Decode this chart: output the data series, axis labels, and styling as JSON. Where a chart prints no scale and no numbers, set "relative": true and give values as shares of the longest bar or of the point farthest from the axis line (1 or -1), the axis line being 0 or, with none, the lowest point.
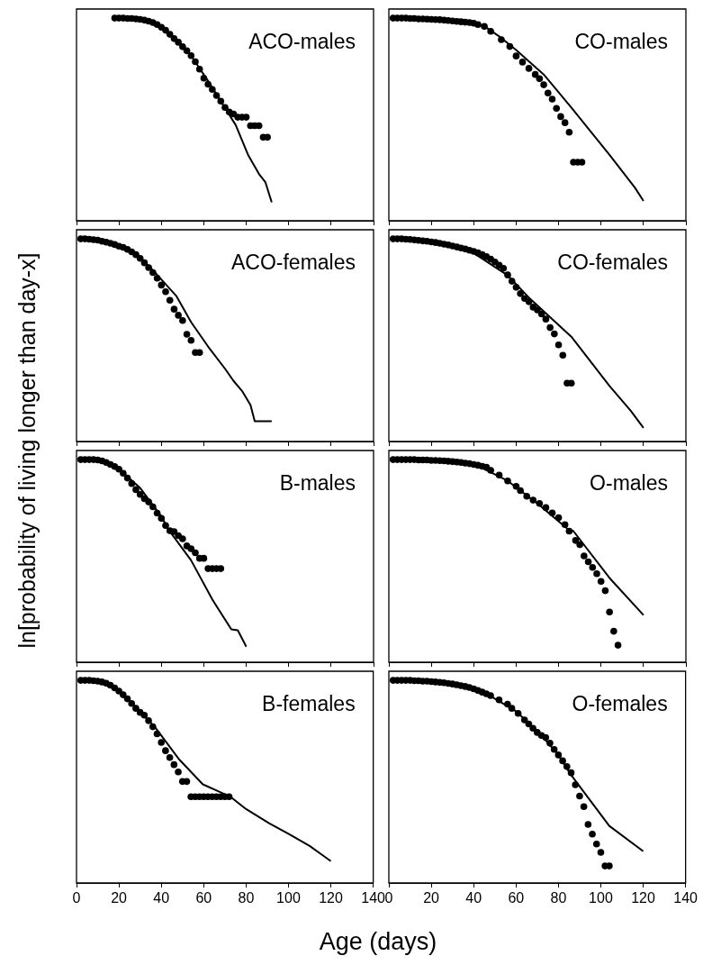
{
  "chart_data": [
    {
      "type": "scatter",
      "title": "ACO-males",
      "ylabel": "ln[probability of living longer than day-x]",
      "relative": true,
      "xlim": [
        0,
        140
      ],
      "xticks": [
        0,
        20,
        40,
        60,
        80,
        100,
        120,
        140
      ],
      "tick_labels": false,
      "series": [
        {
          "type": "scatter",
          "color": "#000000",
          "marker": "circle",
          "x": [
            18,
            20,
            22,
            24,
            26,
            28,
            30,
            32,
            34,
            36,
            38,
            40,
            42,
            44,
            46,
            48,
            50,
            52,
            54,
            56,
            58,
            60,
            62,
            64,
            66,
            68,
            70,
            72,
            74,
            76,
            78,
            80,
            82,
            84,
            86,
            88,
            90
          ],
          "values": [
            1,
            1,
            1,
            0.998,
            0.998,
            0.996,
            0.994,
            0.99,
            0.985,
            0.978,
            0.968,
            0.955,
            0.94,
            0.92,
            0.899,
            0.881,
            0.859,
            0.839,
            0.815,
            0.785,
            0.748,
            0.704,
            0.674,
            0.648,
            0.618,
            0.59,
            0.559,
            0.537,
            0.527,
            0.511,
            0.511,
            0.511,
            0.469,
            0.469,
            0.469,
            0.412,
            0.412
          ]
        },
        {
          "type": "line",
          "color": "#000000",
          "marker": "none",
          "line_style": "solid",
          "x": [
            18,
            30,
            40,
            46,
            54,
            62,
            69,
            75,
            81,
            86,
            89,
            92
          ],
          "values": [
            1,
            0.99,
            0.955,
            0.9,
            0.815,
            0.69,
            0.573,
            0.473,
            0.322,
            0.231,
            0.191,
            0.091
          ]
        }
      ]
    },
    {
      "type": "scatter",
      "title": "CO-males",
      "relative": true,
      "xlim": [
        0,
        140
      ],
      "xticks": [
        0,
        20,
        40,
        60,
        80,
        100,
        120,
        140
      ],
      "tick_labels": false,
      "series": [
        {
          "type": "scatter",
          "color": "#000000",
          "marker": "circle",
          "x": [
            2,
            4,
            6,
            8,
            10,
            12,
            14,
            16,
            18,
            20,
            22,
            24,
            26,
            28,
            30,
            32,
            34,
            36,
            38,
            40,
            42,
            45,
            48,
            53,
            57,
            60,
            63,
            66,
            69,
            71,
            73,
            75,
            77,
            79,
            81,
            83,
            85,
            87,
            89,
            91
          ],
          "values": [
            1,
            1,
            1,
            1,
            0.998,
            0.998,
            0.996,
            0.996,
            0.995,
            0.994,
            0.993,
            0.992,
            0.99,
            0.988,
            0.986,
            0.984,
            0.982,
            0.98,
            0.978,
            0.975,
            0.968,
            0.959,
            0.935,
            0.894,
            0.86,
            0.813,
            0.783,
            0.752,
            0.722,
            0.701,
            0.671,
            0.63,
            0.6,
            0.555,
            0.514,
            0.484,
            0.437,
            0.289,
            0.289,
            0.289
          ]
        },
        {
          "type": "line",
          "color": "#000000",
          "marker": "none",
          "line_style": "solid",
          "x": [
            2,
            15,
            30,
            45,
            52,
            60,
            73,
            86,
            104,
            116,
            120
          ],
          "values": [
            1,
            0.996,
            0.99,
            0.96,
            0.91,
            0.843,
            0.722,
            0.559,
            0.325,
            0.163,
            0.098
          ]
        }
      ]
    },
    {
      "type": "scatter",
      "title": "ACO-females",
      "relative": true,
      "xlim": [
        0,
        140
      ],
      "xticks": [
        0,
        20,
        40,
        60,
        80,
        100,
        120,
        140
      ],
      "tick_labels": false,
      "series": [
        {
          "type": "scatter",
          "color": "#000000",
          "marker": "circle",
          "x": [
            2,
            4,
            6,
            8,
            10,
            12,
            14,
            16,
            18,
            20,
            22,
            24,
            26,
            28,
            30,
            32,
            34,
            36,
            38,
            40,
            42,
            44,
            46,
            48,
            50,
            52,
            54,
            56,
            58
          ],
          "values": [
            1,
            1,
            0.998,
            0.996,
            0.994,
            0.988,
            0.984,
            0.978,
            0.972,
            0.964,
            0.958,
            0.948,
            0.936,
            0.922,
            0.904,
            0.882,
            0.858,
            0.834,
            0.806,
            0.772,
            0.739,
            0.697,
            0.653,
            0.623,
            0.597,
            0.529,
            0.499,
            0.439,
            0.439
          ]
        },
        {
          "type": "line",
          "color": "#000000",
          "marker": "none",
          "line_style": "solid",
          "x": [
            2,
            10,
            20,
            30,
            37,
            47,
            54,
            62,
            70,
            74,
            78,
            82,
            84,
            92
          ],
          "values": [
            1,
            0.994,
            0.965,
            0.91,
            0.834,
            0.719,
            0.589,
            0.469,
            0.359,
            0.299,
            0.25,
            0.18,
            0.1,
            0.1
          ]
        }
      ]
    },
    {
      "type": "scatter",
      "title": "CO-females",
      "relative": true,
      "xlim": [
        0,
        140
      ],
      "xticks": [
        0,
        20,
        40,
        60,
        80,
        100,
        120,
        140
      ],
      "tick_labels": false,
      "series": [
        {
          "type": "scatter",
          "color": "#000000",
          "marker": "circle",
          "x": [
            2,
            4,
            6,
            8,
            10,
            12,
            14,
            16,
            18,
            20,
            22,
            24,
            26,
            28,
            30,
            32,
            34,
            36,
            38,
            40,
            42,
            44,
            46,
            48,
            50,
            52,
            54,
            56,
            58,
            60,
            62,
            64,
            66,
            68,
            70,
            72,
            74,
            76,
            78,
            80,
            82,
            84,
            86
          ],
          "values": [
            1,
            1,
            1,
            0.998,
            0.997,
            0.995,
            0.993,
            0.99,
            0.988,
            0.985,
            0.982,
            0.978,
            0.974,
            0.97,
            0.965,
            0.96,
            0.955,
            0.95,
            0.944,
            0.938,
            0.931,
            0.922,
            0.912,
            0.9,
            0.886,
            0.87,
            0.855,
            0.822,
            0.791,
            0.761,
            0.73,
            0.706,
            0.69,
            0.663,
            0.649,
            0.629,
            0.604,
            0.562,
            0.531,
            0.477,
            0.426,
            0.288,
            0.288
          ]
        },
        {
          "type": "line",
          "color": "#000000",
          "marker": "none",
          "line_style": "solid",
          "x": [
            2,
            20,
            30,
            40,
            56,
            67,
            86,
            104,
            114,
            120
          ],
          "values": [
            1,
            0.985,
            0.965,
            0.93,
            0.82,
            0.7,
            0.517,
            0.274,
            0.152,
            0.067
          ]
        }
      ]
    },
    {
      "type": "scatter",
      "title": "B-males",
      "relative": true,
      "xlim": [
        0,
        140
      ],
      "xticks": [
        0,
        20,
        40,
        60,
        80,
        100,
        120,
        140
      ],
      "tick_labels": false,
      "series": [
        {
          "type": "scatter",
          "color": "#000000",
          "marker": "circle",
          "x": [
            2,
            4,
            6,
            8,
            10,
            12,
            14,
            16,
            18,
            20,
            22,
            24,
            26,
            28,
            30,
            32,
            34,
            36,
            38,
            40,
            42,
            44,
            46,
            48,
            50,
            52,
            54,
            56,
            58,
            60,
            62,
            64,
            66,
            68
          ],
          "values": [
            1,
            1,
            1,
            1,
            0.998,
            0.994,
            0.986,
            0.976,
            0.966,
            0.953,
            0.933,
            0.909,
            0.882,
            0.852,
            0.828,
            0.807,
            0.791,
            0.767,
            0.736,
            0.71,
            0.675,
            0.649,
            0.645,
            0.625,
            0.609,
            0.574,
            0.56,
            0.54,
            0.513,
            0.513,
            0.462,
            0.462,
            0.462,
            0.462
          ]
        },
        {
          "type": "line",
          "color": "#000000",
          "marker": "none",
          "line_style": "solid",
          "x": [
            2,
            10,
            20,
            30,
            40,
            43,
            54,
            64,
            67,
            73,
            76,
            78,
            80
          ],
          "values": [
            1,
            0.998,
            0.953,
            0.86,
            0.72,
            0.66,
            0.503,
            0.31,
            0.26,
            0.162,
            0.158,
            0.118,
            0.077
          ]
        }
      ]
    },
    {
      "type": "scatter",
      "title": "O-males",
      "relative": true,
      "xlim": [
        0,
        140
      ],
      "xticks": [
        0,
        20,
        40,
        60,
        80,
        100,
        120,
        140
      ],
      "tick_labels": false,
      "series": [
        {
          "type": "scatter",
          "color": "#000000",
          "marker": "circle",
          "x": [
            2,
            4,
            6,
            8,
            10,
            12,
            14,
            16,
            18,
            20,
            22,
            24,
            26,
            28,
            30,
            32,
            34,
            36,
            38,
            40,
            42,
            44,
            46,
            48,
            52,
            56,
            60,
            62,
            65,
            68,
            71,
            74,
            77,
            80,
            83,
            85,
            88,
            90,
            92,
            94,
            96,
            98,
            100,
            102,
            104,
            106,
            108
          ],
          "values": [
            1,
            1,
            1,
            1,
            1,
            1,
            0.998,
            0.998,
            0.998,
            0.996,
            0.996,
            0.995,
            0.994,
            0.992,
            0.99,
            0.988,
            0.986,
            0.983,
            0.98,
            0.976,
            0.972,
            0.967,
            0.962,
            0.947,
            0.924,
            0.895,
            0.868,
            0.847,
            0.819,
            0.8,
            0.784,
            0.763,
            0.737,
            0.714,
            0.679,
            0.647,
            0.601,
            0.58,
            0.525,
            0.496,
            0.468,
            0.437,
            0.399,
            0.353,
            0.248,
            0.153,
            0.084
          ]
        },
        {
          "type": "line",
          "color": "#000000",
          "marker": "none",
          "line_style": "solid",
          "x": [
            2,
            20,
            30,
            40,
            56,
            70,
            84,
            87,
            104,
            120
          ],
          "values": [
            1,
            0.996,
            0.99,
            0.98,
            0.895,
            0.784,
            0.66,
            0.647,
            0.416,
            0.233
          ]
        }
      ]
    },
    {
      "type": "scatter",
      "title": "B-females",
      "xlabel": "Age (days)",
      "relative": true,
      "xlim": [
        0,
        140
      ],
      "xticks": [
        0,
        20,
        40,
        60,
        80,
        100,
        120,
        140
      ],
      "tick_labels": "x",
      "series": [
        {
          "type": "scatter",
          "color": "#000000",
          "marker": "circle",
          "x": [
            2,
            4,
            6,
            8,
            10,
            12,
            14,
            16,
            18,
            20,
            22,
            24,
            26,
            28,
            30,
            32,
            34,
            36,
            38,
            40,
            42,
            44,
            46,
            48,
            50,
            52,
            54,
            56,
            58,
            60,
            62,
            64,
            66,
            68,
            70,
            72
          ],
          "values": [
            1,
            1,
            1,
            0.998,
            0.996,
            0.992,
            0.986,
            0.976,
            0.963,
            0.947,
            0.929,
            0.909,
            0.886,
            0.862,
            0.842,
            0.828,
            0.801,
            0.771,
            0.736,
            0.694,
            0.653,
            0.619,
            0.584,
            0.548,
            0.501,
            0.501,
            0.426,
            0.426,
            0.426,
            0.426,
            0.426,
            0.426,
            0.426,
            0.426,
            0.426,
            0.426
          ]
        },
        {
          "type": "line",
          "color": "#000000",
          "marker": "none",
          "line_style": "solid",
          "x": [
            2,
            10,
            20,
            30,
            37,
            48.5,
            59.6,
            72.6,
            80,
            91,
            100,
            110,
            116,
            120
          ],
          "values": [
            1,
            0.996,
            0.947,
            0.845,
            0.77,
            0.609,
            0.487,
            0.426,
            0.365,
            0.294,
            0.243,
            0.183,
            0.138,
            0.108
          ]
        }
      ]
    },
    {
      "type": "scatter",
      "title": "O-females",
      "relative": true,
      "xlim": [
        0,
        140
      ],
      "xticks": [
        0,
        20,
        40,
        60,
        80,
        100,
        120,
        140
      ],
      "tick_labels": "x",
      "series": [
        {
          "type": "scatter",
          "color": "#000000",
          "marker": "circle",
          "x": [
            2,
            4,
            6,
            8,
            10,
            12,
            14,
            16,
            18,
            20,
            22,
            24,
            26,
            28,
            30,
            32,
            34,
            36,
            38,
            40,
            42,
            44,
            46,
            48,
            52,
            56,
            58,
            61,
            64,
            66,
            68,
            70,
            72,
            74,
            76,
            78,
            80,
            82,
            84,
            86,
            88,
            90,
            92,
            94,
            96,
            98,
            100,
            102,
            104
          ],
          "values": [
            1,
            1,
            1,
            1,
            1,
            0.998,
            0.998,
            0.996,
            0.996,
            0.994,
            0.992,
            0.99,
            0.988,
            0.985,
            0.982,
            0.978,
            0.974,
            0.97,
            0.965,
            0.958,
            0.95,
            0.942,
            0.934,
            0.925,
            0.904,
            0.883,
            0.862,
            0.837,
            0.805,
            0.785,
            0.764,
            0.743,
            0.728,
            0.718,
            0.69,
            0.659,
            0.632,
            0.603,
            0.575,
            0.544,
            0.485,
            0.429,
            0.377,
            0.289,
            0.241,
            0.192,
            0.151,
            0.084,
            0.084
          ]
        },
        {
          "type": "line",
          "color": "#000000",
          "marker": "none",
          "line_style": "solid",
          "x": [
            2,
            20,
            30,
            40,
            46,
            60,
            72,
            80,
            86,
            104,
            120
          ],
          "values": [
            1,
            0.994,
            0.982,
            0.958,
            0.934,
            0.848,
            0.728,
            0.632,
            0.533,
            0.282,
            0.157
          ]
        }
      ]
    }
  ]
}
